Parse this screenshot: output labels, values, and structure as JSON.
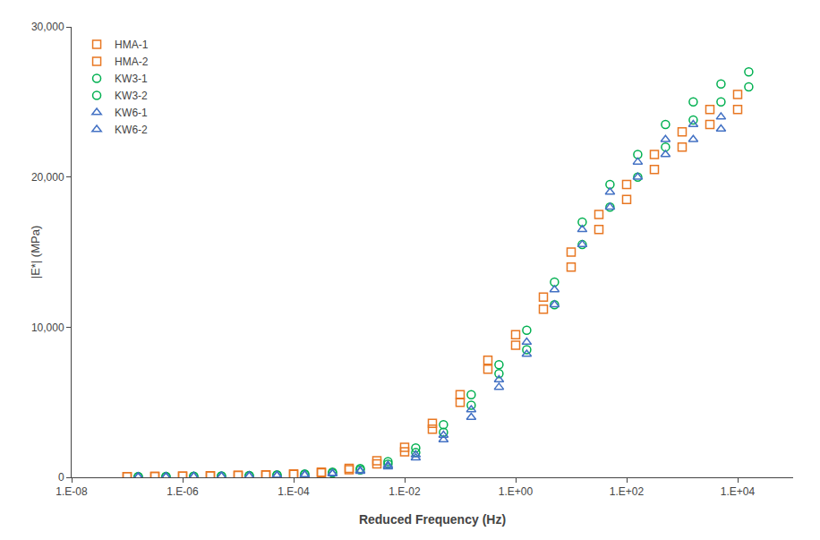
{
  "chart_data": {
    "type": "scatter",
    "xlabel": "Reduced Frequency (Hz)",
    "ylabel": "|E*| (MPa)",
    "log": "x",
    "xlim": [
      1e-08,
      100000.0
    ],
    "xticks": [
      {
        "value": 1e-08,
        "label": "1.E-08"
      },
      {
        "value": 1e-06,
        "label": "1.E-06"
      },
      {
        "value": 0.0001,
        "label": "1.E-04"
      },
      {
        "value": 0.01,
        "label": "1.E-02"
      },
      {
        "value": 1,
        "label": "1.E+00"
      },
      {
        "value": 100,
        "label": "1.E+02"
      },
      {
        "value": 10000,
        "label": "1.E+04"
      }
    ],
    "ylim": [
      0,
      30000
    ],
    "yticks": [
      0,
      {
        "value": 10000,
        "label": "10,000"
      },
      {
        "value": 20000,
        "label": "20,000"
      },
      {
        "value": 30000,
        "label": "30,000"
      }
    ],
    "grid": false,
    "legend": "upper left",
    "series": [
      {
        "name": "HMA-1",
        "color": "#E87722",
        "marker": "square",
        "x": [
          1e-07,
          3.1622776601683797e-07,
          1e-06,
          3.1622776601683796e-06,
          1e-05,
          3.1622776601683795e-05,
          0.0001,
          0.00031622776601683794,
          0.001,
          0.0031622776601683794,
          0.01,
          0.0316227766016838,
          0.1,
          0.31622776601683794,
          1,
          3.1622776601683795,
          10,
          31.622776601683796,
          100,
          316.22776601683796,
          1000,
          3162.2776601683795,
          10000
        ],
        "values": [
          50,
          60,
          80,
          100,
          130,
          170,
          230,
          350,
          600,
          1100,
          2000,
          3600,
          5500,
          7800,
          9500,
          12000,
          15000,
          17500,
          19500,
          21500,
          23000,
          24500,
          25500
        ]
      },
      {
        "name": "HMA-2",
        "color": "#E87722",
        "marker": "square",
        "x": [
          1e-07,
          3.1622776601683797e-07,
          1e-06,
          3.1622776601683796e-06,
          1e-05,
          3.1622776601683795e-05,
          0.0001,
          0.00031622776601683794,
          0.001,
          0.0031622776601683794,
          0.01,
          0.0316227766016838,
          0.1,
          0.31622776601683794,
          1,
          3.1622776601683795,
          10,
          31.622776601683796,
          100,
          316.22776601683796,
          1000,
          3162.2776601683795,
          10000
        ],
        "values": [
          45,
          55,
          70,
          90,
          115,
          150,
          200,
          300,
          500,
          900,
          1700,
          3200,
          5000,
          7200,
          8800,
          11200,
          14000,
          16500,
          18500,
          20500,
          22000,
          23500,
          24500
        ]
      },
      {
        "name": "KW3-1",
        "color": "#00B050",
        "marker": "circle",
        "x": [
          1.5848931924611136e-07,
          5.011872336272722e-07,
          1.5848931924611137e-06,
          5.011872336272722e-06,
          1.5848931924611134e-05,
          5.011872336272722e-05,
          0.00015848931924611136,
          0.0005011872336272722,
          0.0015848931924611136,
          0.005011872336272722,
          0.015848931924611134,
          0.05011872336272722,
          0.15848931924611137,
          0.5011872336272722,
          1.5848931924611136,
          5.011872336272722,
          15.848931924611136,
          50.11872336272722,
          158.48931924611136,
          501.1872336272722,
          1584.8931924611136,
          5011.872336272722,
          15848.931924611135
        ],
        "values": [
          50,
          60,
          75,
          95,
          125,
          160,
          220,
          350,
          580,
          1050,
          1950,
          3500,
          5500,
          7500,
          9800,
          13000,
          17000,
          19500,
          21500,
          23500,
          25000,
          26200,
          27000
        ]
      },
      {
        "name": "KW3-2",
        "color": "#00B050",
        "marker": "circle",
        "x": [
          1.5848931924611136e-07,
          5.011872336272722e-07,
          1.5848931924611137e-06,
          5.011872336272722e-06,
          1.5848931924611134e-05,
          5.011872336272722e-05,
          0.00015848931924611136,
          0.0005011872336272722,
          0.0015848931924611136,
          0.005011872336272722,
          0.015848931924611134,
          0.05011872336272722,
          0.15848931924611137,
          0.5011872336272722,
          1.5848931924611136,
          5.011872336272722,
          15.848931924611136,
          50.11872336272722,
          158.48931924611136,
          501.1872336272722,
          1584.8931924611136,
          5011.872336272722,
          15848.931924611135
        ],
        "values": [
          40,
          50,
          65,
          80,
          105,
          135,
          185,
          290,
          490,
          880,
          1650,
          3000,
          4800,
          6900,
          8500,
          11500,
          15500,
          18000,
          20000,
          22000,
          23800,
          25000,
          26000
        ]
      },
      {
        "name": "KW6-1",
        "color": "#4472C4",
        "marker": "triangle-up",
        "x": [
          1.5848931924611136e-07,
          5.011872336272722e-07,
          1.5848931924611137e-06,
          5.011872336272722e-06,
          1.5848931924611134e-05,
          5.011872336272722e-05,
          0.00015848931924611136,
          0.0005011872336272722,
          0.0015848931924611136,
          0.005011872336272722,
          0.015848931924611134,
          0.05011872336272722,
          0.15848931924611137,
          0.5011872336272722,
          1.5848931924611136,
          5.011872336272722,
          15.848931924611136,
          50.11872336272722,
          158.48931924611136,
          501.1872336272722,
          1584.8931924611136,
          5011.872336272722
        ],
        "values": [
          40,
          50,
          65,
          80,
          100,
          130,
          175,
          270,
          450,
          800,
          1500,
          2800,
          4500,
          6500,
          9000,
          12500,
          16500,
          19000,
          21000,
          22500,
          23500,
          24000
        ]
      },
      {
        "name": "KW6-2",
        "color": "#4472C4",
        "marker": "triangle-up",
        "x": [
          1.5848931924611136e-07,
          5.011872336272722e-07,
          1.5848931924611137e-06,
          5.011872336272722e-06,
          1.5848931924611134e-05,
          5.011872336272722e-05,
          0.00015848931924611136,
          0.0005011872336272722,
          0.0015848931924611136,
          0.005011872336272722,
          0.015848931924611134,
          0.05011872336272722,
          0.15848931924611137,
          0.5011872336272722,
          1.5848931924611136,
          5.011872336272722,
          15.848931924611136,
          50.11872336272722,
          158.48931924611136,
          501.1872336272722,
          1584.8931924611136,
          5011.872336272722
        ],
        "values": [
          35,
          42,
          55,
          70,
          90,
          115,
          155,
          240,
          400,
          700,
          1300,
          2500,
          4000,
          6000,
          8200,
          11500,
          15500,
          18000,
          20000,
          21500,
          22500,
          23200
        ]
      }
    ]
  }
}
